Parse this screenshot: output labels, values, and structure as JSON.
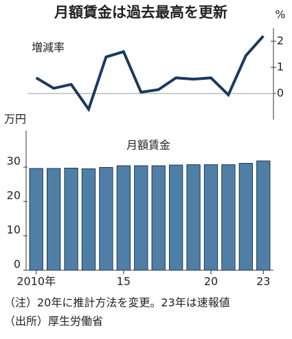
{
  "chart_data": [
    {
      "type": "line",
      "title": "月額賃金は過去最高を更新",
      "y_unit": "%",
      "label": "増減率",
      "color": "#1b3a5c",
      "values": [
        0.6,
        0.2,
        0.35,
        -0.6,
        1.4,
        1.6,
        0.05,
        0.15,
        0.6,
        0.55,
        0.6,
        -0.05,
        1.45,
        2.2
      ],
      "ylim": [
        -1,
        2.5
      ],
      "yticks": [
        0,
        1,
        2
      ]
    },
    {
      "type": "bar",
      "y_unit": "万円",
      "label": "月額賃金",
      "color": "#4f7fa6",
      "categories": [
        "2010年",
        null,
        null,
        null,
        null,
        "15",
        null,
        null,
        null,
        null,
        "20",
        null,
        null,
        "23"
      ],
      "values": [
        29.6,
        29.6,
        29.7,
        29.5,
        29.9,
        30.4,
        30.4,
        30.4,
        30.6,
        30.7,
        30.7,
        30.7,
        31.1,
        31.8
      ],
      "ylim": [
        0,
        38
      ],
      "yticks": [
        0,
        10,
        20,
        30
      ]
    }
  ],
  "notes": [
    "（注）20年に推計方法を変更。23年は速報値",
    "（出所）厚生労働省"
  ]
}
